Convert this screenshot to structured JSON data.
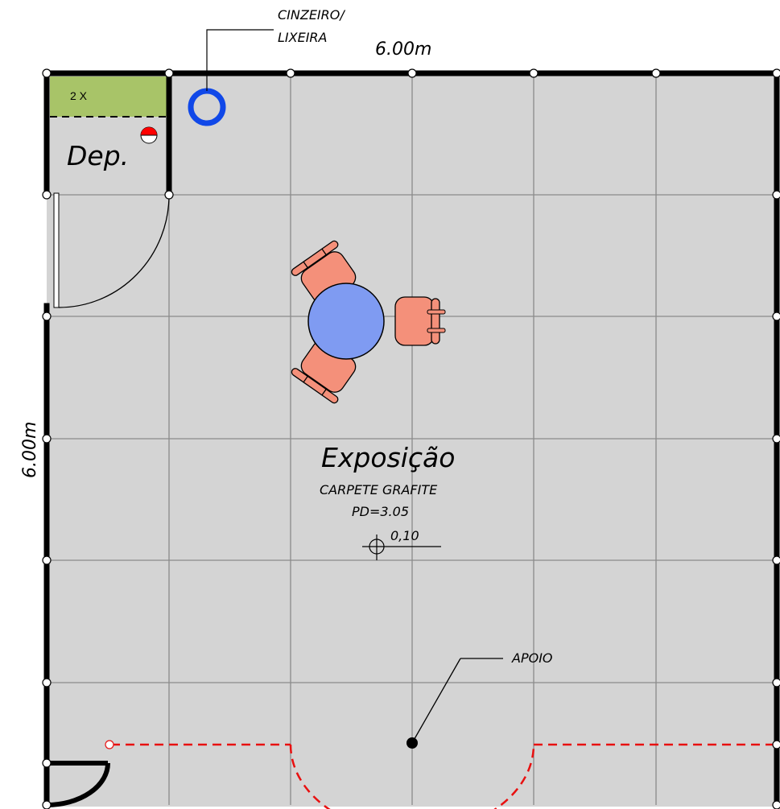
{
  "labels": {
    "top_dimension": "6.00m",
    "side_dimension": "6.00m",
    "cinzeiro_line1": "CINZEIRO/",
    "cinzeiro_line2": "LIXEIRA",
    "storage_shelf": "2 X",
    "storage_room": "Dep.",
    "room_name": "Exposição",
    "floor_finish": "CARPETE GRAFITE",
    "ceiling_height": "PD=3.05",
    "floor_level": "0,10",
    "support_counter": "APOIO"
  },
  "colors": {
    "floor": "#d4d4d4",
    "grid": "#888888",
    "wall": "#000000",
    "shelf": "#a8c468",
    "table": "#7f9bf2",
    "chair": "#f4907a",
    "bin": "#1048e8",
    "extinguisher": "#ff0000",
    "counter_line": "#e81010"
  },
  "icons": {
    "bin": "circle-ring-icon",
    "extinguisher": "half-filled-circle-icon",
    "level_marker": "crosshair-circle-icon"
  }
}
